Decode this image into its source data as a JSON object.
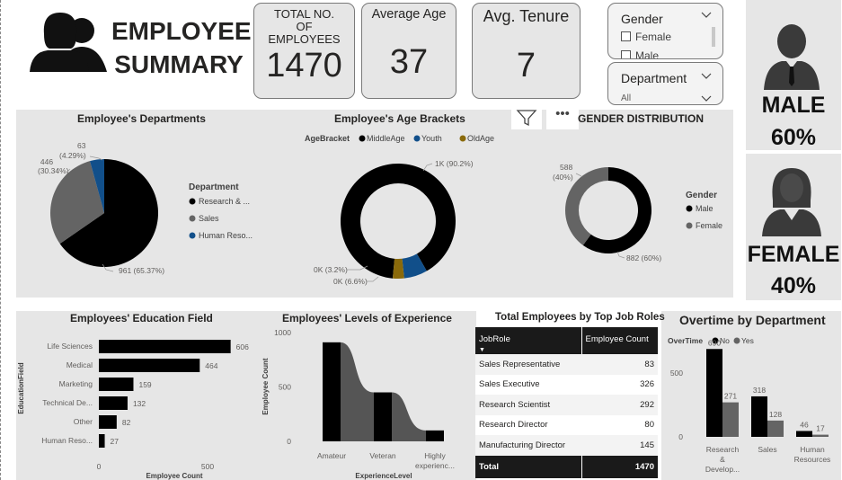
{
  "header": {
    "title_line1": "EMPLOYEE",
    "title_line2": "SUMMARY"
  },
  "kpis": {
    "total_label": "TOTAL NO. OF EMPLOYEES",
    "total_value": "1470",
    "age_label": "Average Age",
    "age_value": "37",
    "tenure_label": "Avg. Tenure",
    "tenure_value": "7"
  },
  "slicers": {
    "gender_title": "Gender",
    "gender_options": [
      "Female",
      "Male"
    ],
    "department_title": "Department",
    "department_value": "All"
  },
  "gender_panel": {
    "male_label": "MALE",
    "male_pct": "60%",
    "female_label": "FEMALE",
    "female_pct": "40%"
  },
  "colors": {
    "black": "#000000",
    "gray": "#646464",
    "blue": "#114F8A",
    "olive": "#8A6A0B",
    "card_bg": "#e6e6e6"
  },
  "chart_data": [
    {
      "type": "pie",
      "title": "Employee's Departments",
      "legend_title": "Department",
      "legend_labels": [
        "Research & ...",
        "Sales",
        "Human Reso..."
      ],
      "categories": [
        "Research & Development",
        "Sales",
        "Human Resources"
      ],
      "values": [
        961,
        446,
        63
      ],
      "data_labels": [
        "961 (65.37%)",
        "446 (30.34%)",
        "63 (4.29%)"
      ],
      "legend_position": "right"
    },
    {
      "type": "pie",
      "subtype": "donut",
      "title": "Employee's Age Brackets",
      "legend_title": "AgeBracket",
      "categories": [
        "MiddleAge",
        "Youth",
        "OldAge"
      ],
      "values": [
        90.2,
        6.6,
        3.2
      ],
      "data_labels": [
        "1K (90.2%)",
        "0K (6.6%)",
        "0K (3.2%)"
      ],
      "legend_position": "top"
    },
    {
      "type": "pie",
      "subtype": "donut",
      "title": "GENDER DISTRIBUTION",
      "legend_title": "Gender",
      "categories": [
        "Male",
        "Female"
      ],
      "values": [
        882,
        588
      ],
      "data_labels": [
        "882 (60%)",
        "588 (40%)"
      ],
      "legend_position": "right"
    },
    {
      "type": "bar",
      "orientation": "horizontal",
      "title": "Employees' Education Field",
      "xlabel": "Employee Count",
      "ylabel": "EducationField",
      "categories": [
        "Life Sciences",
        "Medical",
        "Marketing",
        "Technical De...",
        "Other",
        "Human Reso..."
      ],
      "values": [
        606,
        464,
        159,
        132,
        82,
        27
      ],
      "xticks": [
        "0",
        "500"
      ],
      "xlim": [
        0,
        640
      ]
    },
    {
      "type": "area",
      "title": "Employees' Levels of Experience",
      "xlabel": "ExperienceLevel",
      "ylabel": "Employee Count",
      "categories": [
        "Amateur",
        "Veteran",
        "Highly experienc..."
      ],
      "values": [
        910,
        450,
        100
      ],
      "yticks": [
        "0",
        "500",
        "1000"
      ],
      "ylim": [
        0,
        1000
      ]
    },
    {
      "type": "table",
      "title": "Total Employees by Top Job Roles",
      "columns": [
        "JobRole",
        "Employee Count"
      ],
      "rows": [
        [
          "Sales Representative",
          "83"
        ],
        [
          "Sales Executive",
          "326"
        ],
        [
          "Research Scientist",
          "292"
        ],
        [
          "Research Director",
          "80"
        ],
        [
          "Manufacturing Director",
          "145"
        ]
      ],
      "total": [
        "Total",
        "1470"
      ]
    },
    {
      "type": "bar",
      "title": "Overtime by Department",
      "legend_title": "OverTime",
      "categories": [
        "Research & Develop...",
        "Sales",
        "Human Resources"
      ],
      "series": [
        {
          "name": "No",
          "values": [
            690,
            318,
            46
          ]
        },
        {
          "name": "Yes",
          "values": [
            271,
            128,
            17
          ]
        }
      ],
      "yticks": [
        "0",
        "500"
      ],
      "ylim": [
        0,
        720
      ],
      "legend_position": "top"
    }
  ]
}
